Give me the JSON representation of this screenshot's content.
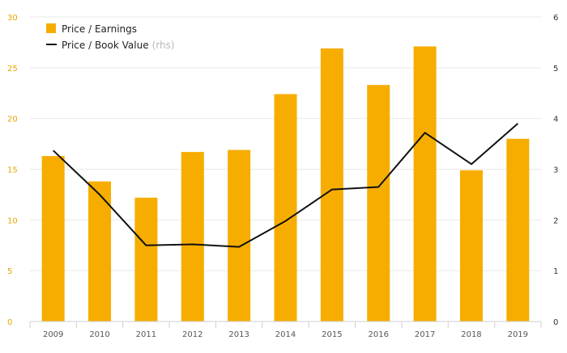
{
  "colors": {
    "bar": "#f6ad00",
    "line": "#111111",
    "left_axis_text": "#e8a400",
    "grid": "#e9e9e9"
  },
  "legend": {
    "pe_label": "Price / Earnings",
    "pb_label": "Price / Book Value",
    "pb_suffix": "(rhs)"
  },
  "chart_data": {
    "type": "bar",
    "categories": [
      "2009",
      "2010",
      "2011",
      "2012",
      "2013",
      "2014",
      "2015",
      "2016",
      "2017",
      "2018",
      "2019"
    ],
    "series": [
      {
        "name": "Price / Earnings",
        "type": "bar",
        "axis": "left",
        "values": [
          16.3,
          13.8,
          12.2,
          16.7,
          16.9,
          22.4,
          26.9,
          23.3,
          27.1,
          14.9,
          18.0
        ]
      },
      {
        "name": "Price / Book Value",
        "type": "line",
        "axis": "right",
        "values": [
          3.37,
          2.5,
          1.5,
          1.52,
          1.47,
          1.98,
          2.6,
          2.65,
          3.72,
          3.1,
          3.9
        ]
      }
    ],
    "left_axis": {
      "min": 0,
      "max": 30,
      "ticks": [
        "0",
        "5",
        "10",
        "15",
        "20",
        "25",
        "30"
      ]
    },
    "right_axis": {
      "min": 0,
      "max": 6,
      "ticks": [
        "0",
        "1",
        "2",
        "3",
        "4",
        "5",
        "6"
      ]
    },
    "grid": true,
    "legend_position": "top-left"
  }
}
